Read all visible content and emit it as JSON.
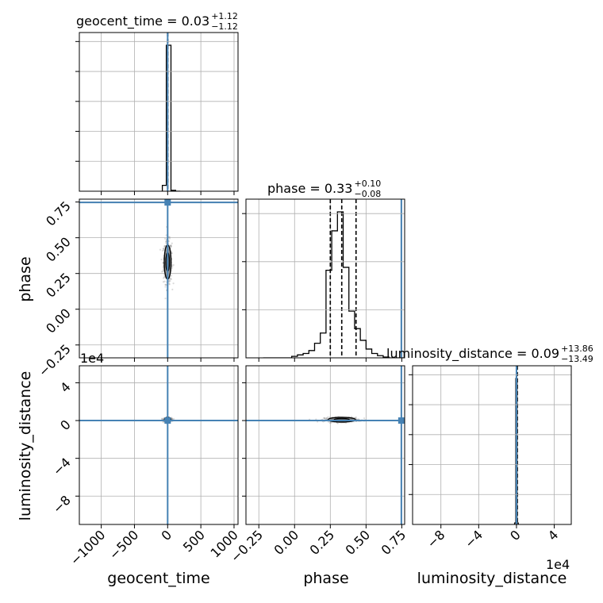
{
  "chart_data": {
    "type": "corner",
    "parameters": [
      "geocent_time",
      "phase",
      "luminosity_distance"
    ],
    "axis_labels": {
      "geocent_time": "geocent_time",
      "phase": "phase",
      "luminosity_distance": "luminosity_distance"
    },
    "titles": {
      "geocent_time": {
        "name": "geocent_time",
        "median": "0.03",
        "plus": "+1.12",
        "minus": "−1.12"
      },
      "phase": {
        "name": "phase",
        "median": "0.33",
        "plus": "+0.10",
        "minus": "−0.08"
      },
      "luminosity_distance": {
        "name": "luminosity_distance",
        "median": "0.09",
        "plus": "+13.86",
        "minus": "−13.49"
      }
    },
    "ranges": {
      "geocent_time": [
        -1330,
        1060
      ],
      "phase": [
        -0.34,
        0.77
      ],
      "luminosity_distance": [
        -11,
        5.8
      ]
    },
    "ticks": {
      "geocent_time": {
        "values": [
          -1000,
          -500,
          0,
          500,
          1000
        ],
        "labels": [
          "−1000",
          "−500",
          "0",
          "500",
          "1000"
        ]
      },
      "phase": {
        "values": [
          -0.25,
          0.0,
          0.25,
          0.5,
          0.75
        ],
        "labels": [
          "−0.25",
          "0.00",
          "0.25",
          "0.50",
          "0.75"
        ]
      },
      "luminosity_distance": {
        "values": [
          -8,
          -4,
          0,
          4
        ],
        "labels": [
          "−8",
          "−4",
          "0",
          "4"
        ]
      }
    },
    "offset_text": {
      "luminosity_distance": "1e4"
    },
    "injection": {
      "geocent_time": 0,
      "phase": 0.747,
      "luminosity_distance": 0
    },
    "quantiles": {
      "geocent_time": [
        -1.09,
        0.03,
        1.15
      ],
      "phase": [
        0.25,
        0.33,
        0.43
      ],
      "luminosity_distance": [
        -13.4,
        0.09,
        13.95
      ]
    },
    "histograms": {
      "geocent_time": {
        "edges": [
          -80,
          -20,
          50,
          120,
          190
        ],
        "counts": [
          0.04,
          1.0,
          0.006,
          0.0
        ]
      },
      "phase": {
        "edges": [
          -0.22,
          -0.18,
          -0.14,
          -0.1,
          -0.06,
          -0.02,
          0.02,
          0.06,
          0.1,
          0.14,
          0.18,
          0.22,
          0.26,
          0.3,
          0.34,
          0.38,
          0.42,
          0.46,
          0.5,
          0.54,
          0.58,
          0.62,
          0.66,
          0.7,
          0.74,
          0.78
        ],
        "counts": [
          0,
          0,
          0,
          0,
          0,
          0.01,
          0.02,
          0.03,
          0.05,
          0.1,
          0.17,
          0.6,
          0.87,
          1.0,
          0.62,
          0.32,
          0.2,
          0.12,
          0.06,
          0.03,
          0.015,
          0.005,
          0,
          0,
          0
        ]
      },
      "luminosity_distance": {
        "edges": [
          -0.2,
          -0.07,
          0.06,
          0.19
        ],
        "counts": [
          0.01,
          1.0,
          0.01
        ]
      }
    },
    "scatter_spread": {
      "geocent_time_vs_phase": {
        "x_sd": 32,
        "y_sd": 0.075
      },
      "geocent_time_vs_luminosity_distance": {
        "x_sd": 30,
        "y_sd": 0.1
      },
      "phase_vs_luminosity_distance": {
        "x_sd": 0.06,
        "y_sd": 0.12
      }
    },
    "colors": {
      "truth": "#4682b4",
      "hist": "#000000",
      "grid": "#b0b0b0",
      "points": "#999999",
      "fill": "#888888"
    },
    "grid": true
  }
}
